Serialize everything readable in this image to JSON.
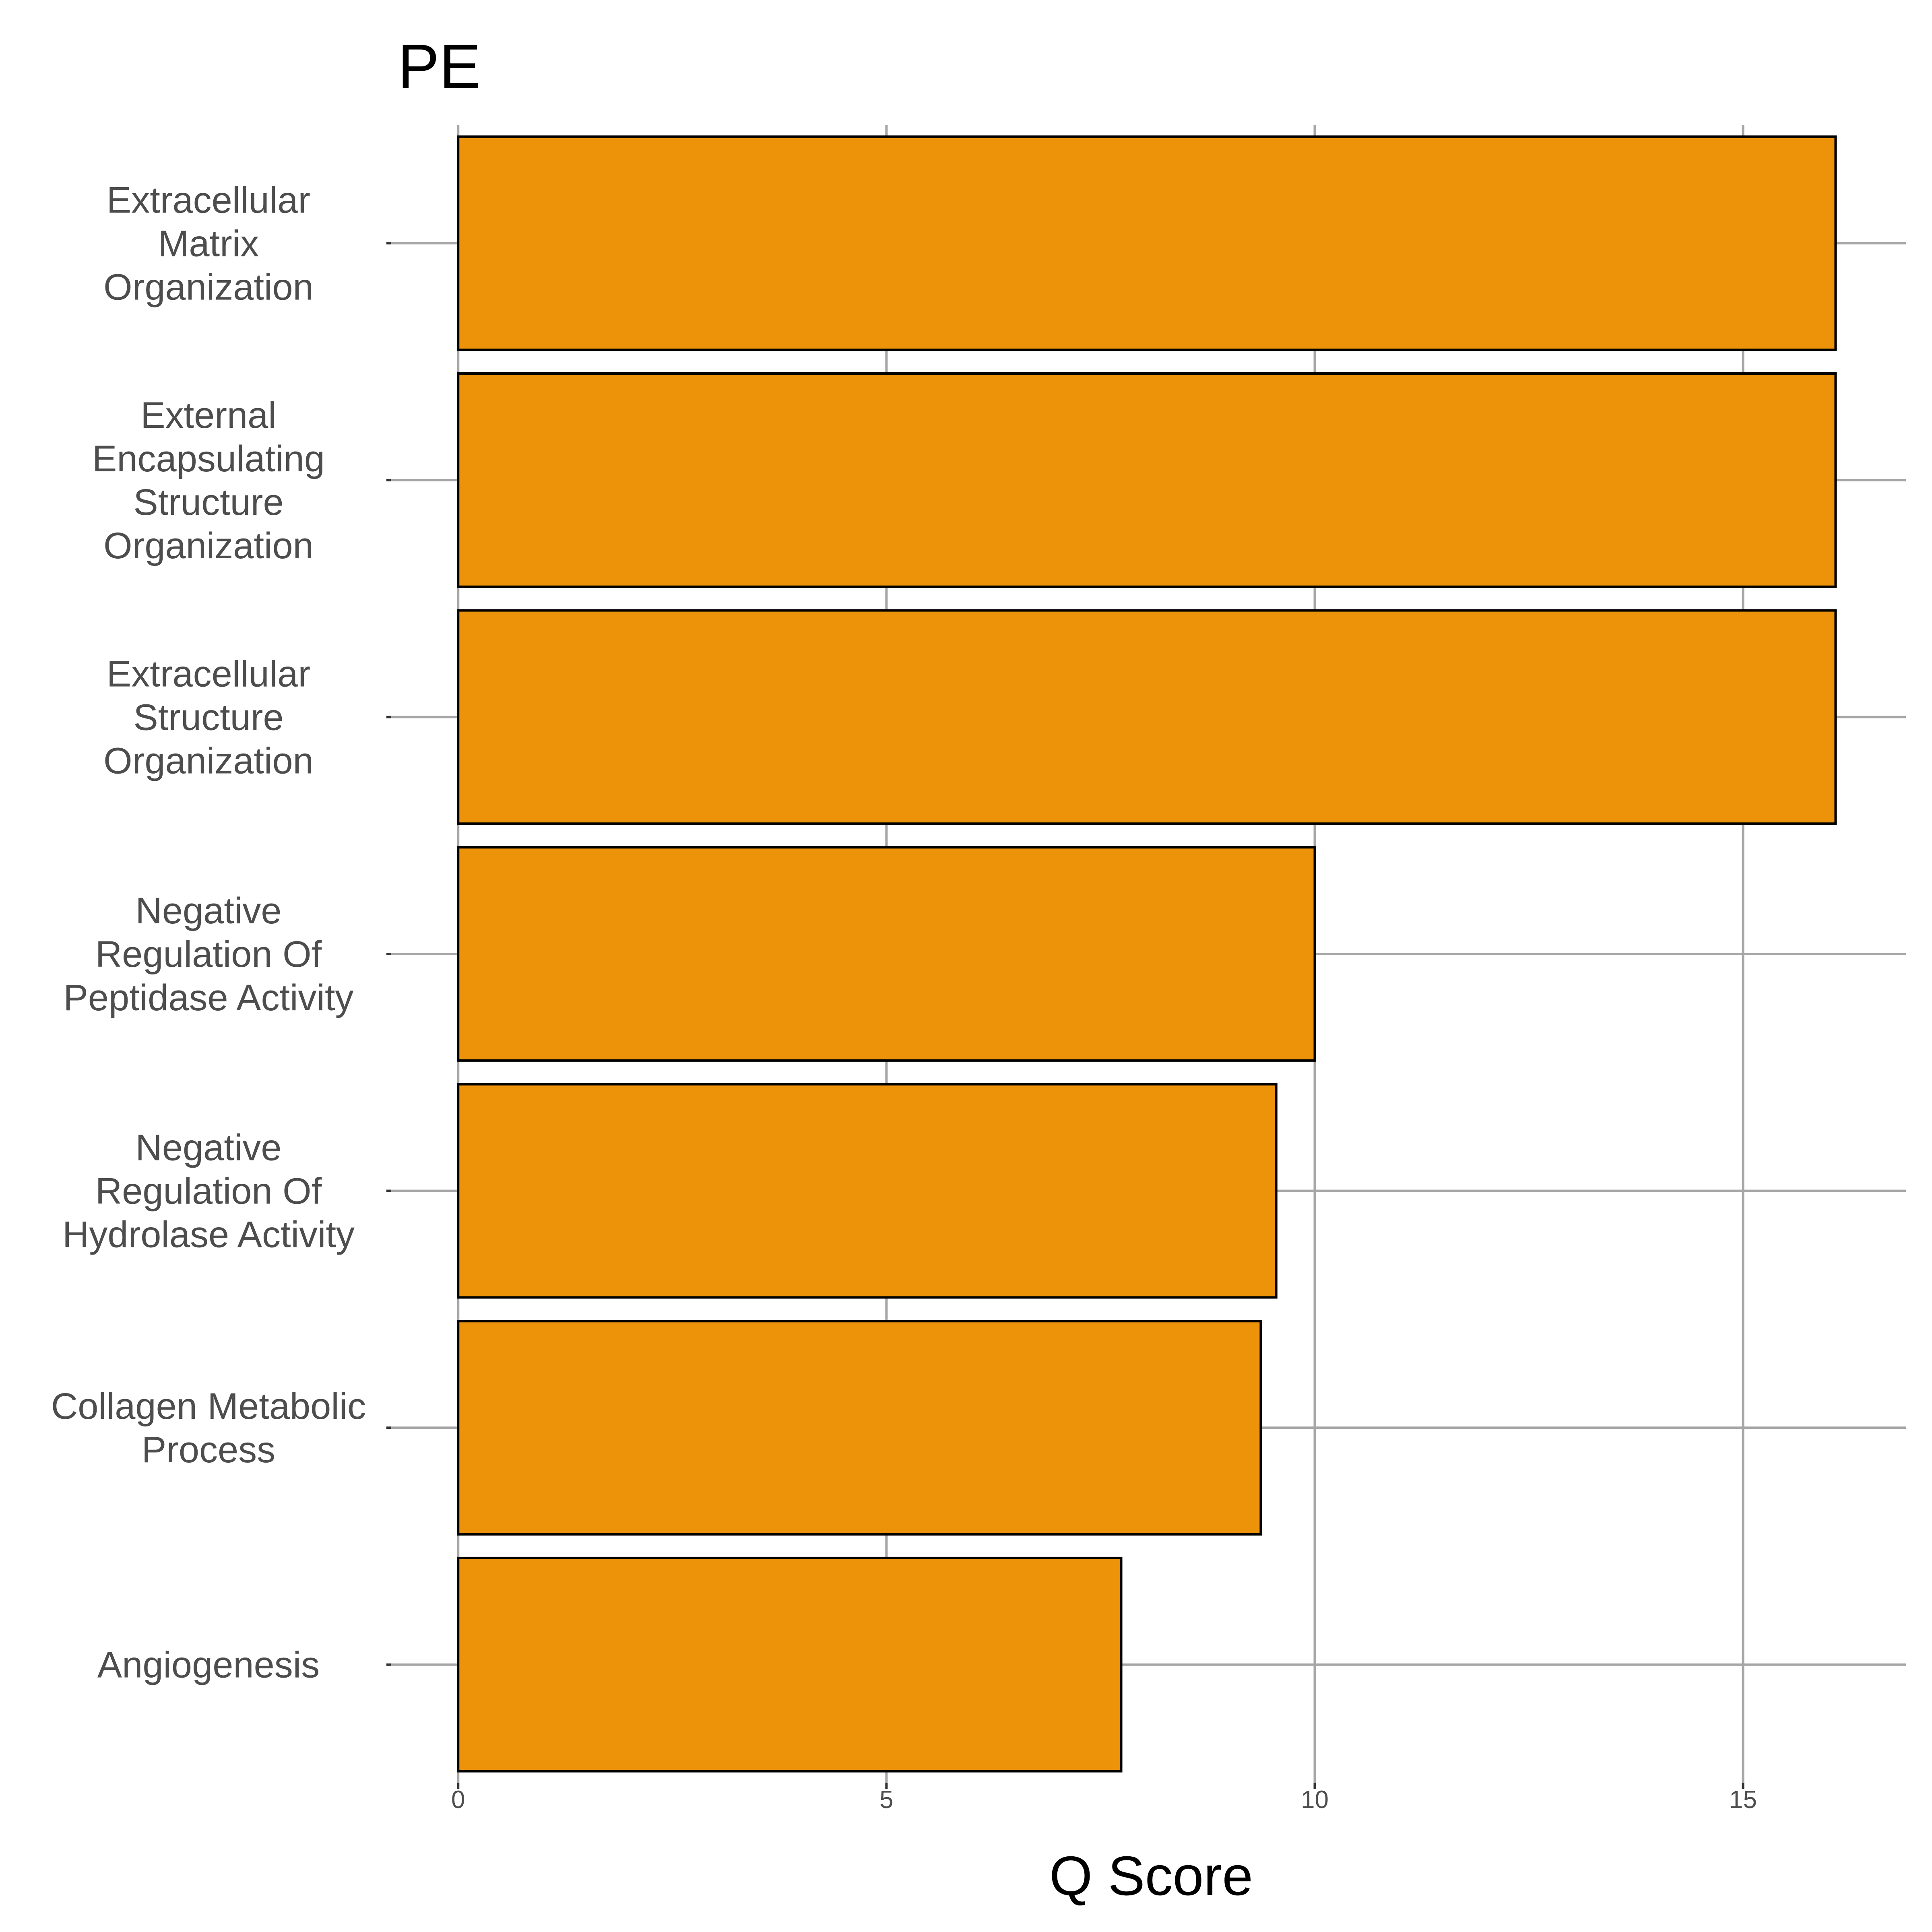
{
  "chart_data": {
    "type": "bar",
    "orientation": "horizontal",
    "title": "PE",
    "xlabel": "Q Score",
    "ylabel": "",
    "categories": [
      [
        "Extracellular",
        "Matrix",
        "Organization"
      ],
      [
        "External",
        "Encapsulating",
        "Structure",
        "Organization"
      ],
      [
        "Extracellular",
        "Structure",
        "Organization"
      ],
      [
        "Negative",
        "Regulation Of",
        "Peptidase Activity"
      ],
      [
        "Negative",
        "Regulation Of",
        "Hydrolase Activity"
      ],
      [
        "Collagen Metabolic",
        "Process"
      ],
      [
        "Angiogenesis"
      ]
    ],
    "values": [
      16.08,
      16.08,
      16.08,
      10.0,
      9.55,
      9.37,
      7.74
    ],
    "xticks": [
      0,
      5,
      10,
      15
    ],
    "xtick_labels": [
      "0",
      "5",
      "10",
      "15"
    ],
    "xlim": [
      -0.8,
      16.9
    ],
    "grid": true,
    "legend": "none",
    "bar_color": "#ED930A",
    "bar_edge_color": "#000000"
  }
}
